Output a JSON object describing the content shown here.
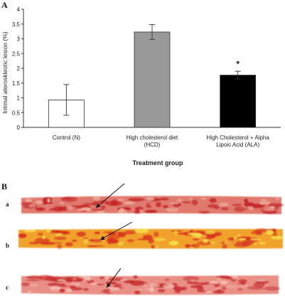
{
  "panels": {
    "a_label": "A",
    "b_label": "B"
  },
  "chart_data": {
    "type": "bar",
    "categories": [
      [
        "Control (N)"
      ],
      [
        "High cholesterol diet",
        "(HCD)"
      ],
      [
        "High Cholesterol + Alpha",
        "Lipoic Acid (ALA)"
      ]
    ],
    "values": [
      0.93,
      3.23,
      1.77
    ],
    "errors": [
      0.52,
      0.25,
      0.13
    ],
    "bar_colors": [
      "#ffffff",
      "#999999",
      "#000000"
    ],
    "ylabel": "Intimal ateroskleotic lesion (%)",
    "xlabel": "Treatment group",
    "ylim": [
      0,
      4
    ],
    "yticks": [
      "0",
      "0.5",
      "1",
      "1.5",
      "2",
      "2.5",
      "3",
      "3.5",
      "4"
    ],
    "annotations": [
      {
        "category_index": 2,
        "text": "*"
      }
    ],
    "grid": false
  },
  "specimens": {
    "rows": [
      {
        "label": "a",
        "base_color": "#e07a6e",
        "lesion_color": "#c4262a",
        "highlight_color": "#f1b8a8"
      },
      {
        "label": "b",
        "base_color": "#f0a22a",
        "lesion_color": "#d8331f",
        "highlight_color": "#f6e24a"
      },
      {
        "label": "c",
        "base_color": "#e98f86",
        "lesion_color": "#c83233",
        "highlight_color": "#f3c2b6"
      }
    ],
    "background_color": "#ffffff"
  }
}
